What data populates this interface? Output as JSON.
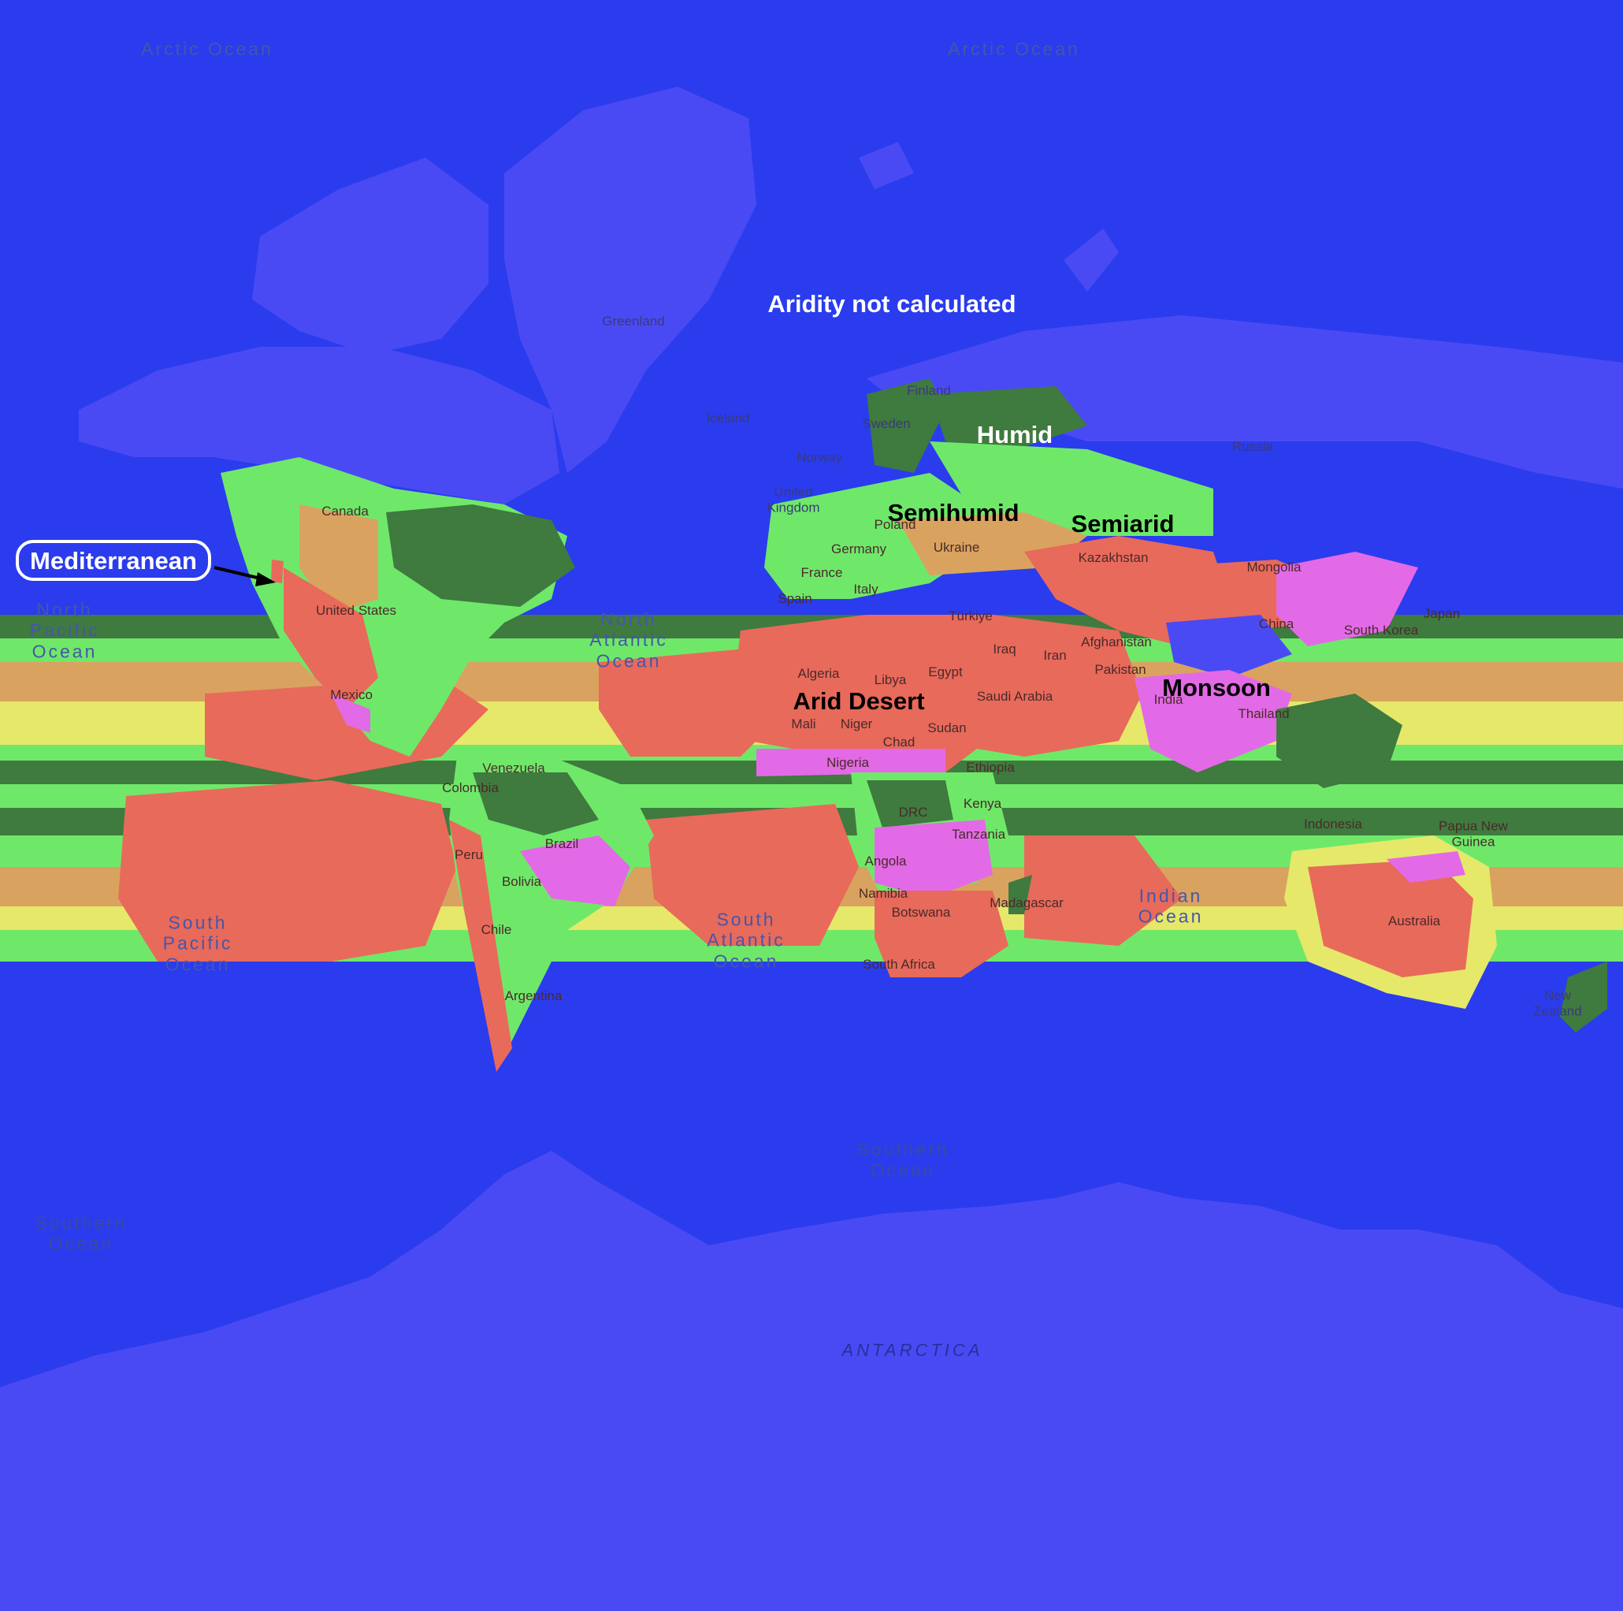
{
  "title_annotation": "Aridity not calculated",
  "zone_labels": {
    "humid": "Humid",
    "semihumid": "Semihumid",
    "semiarid": "Semiarid",
    "arid_desert": "Arid Desert",
    "monsoon": "Monsoon",
    "mediterranean": "Mediterranean"
  },
  "oceans": {
    "arctic_left": "Arctic Ocean",
    "arctic_right": "Arctic Ocean",
    "north_pacific": "North\nPacific\nOcean",
    "north_atlantic": "North\nAtlantic\nOcean",
    "south_pacific": "South\nPacific\nOcean",
    "south_atlantic": "South\nAtlantic\nOcean",
    "indian": "Indian\nOcean",
    "southern_center": "Southern\nOcean",
    "southern_left": "Southern\nOcean"
  },
  "continents": {
    "antarctica": "ANTARCTICA"
  },
  "countries": {
    "greenland": "Greenland",
    "iceland": "Iceland",
    "finland": "Finland",
    "sweden": "Sweden",
    "norway": "Norway",
    "united_kingdom": "United\nKingdom",
    "poland": "Poland",
    "germany": "Germany",
    "france": "France",
    "spain": "Spain",
    "italy": "Italy",
    "ukraine": "Ukraine",
    "turkiye": "Türkiye",
    "russia": "Russia",
    "kazakhstan": "Kazakhstan",
    "mongolia": "Mongolia",
    "china": "China",
    "south_korea": "South Korea",
    "japan": "Japan",
    "iraq": "Iraq",
    "iran": "Iran",
    "afghanistan": "Afghanistan",
    "pakistan": "Pakistan",
    "india": "India",
    "thailand": "Thailand",
    "saudi_arabia": "Saudi Arabia",
    "algeria": "Algeria",
    "libya": "Libya",
    "egypt": "Egypt",
    "mali": "Mali",
    "niger": "Niger",
    "chad": "Chad",
    "sudan": "Sudan",
    "nigeria": "Nigeria",
    "ethiopia": "Ethiopia",
    "kenya": "Kenya",
    "drc": "DRC",
    "tanzania": "Tanzania",
    "angola": "Angola",
    "namibia": "Namibia",
    "botswana": "Botswana",
    "madagascar": "Madagascar",
    "south_africa": "South Africa",
    "canada": "Canada",
    "united_states": "United States",
    "mexico": "Mexico",
    "venezuela": "Venezuela",
    "colombia": "Colombia",
    "peru": "Peru",
    "brazil": "Brazil",
    "bolivia": "Bolivia",
    "chile": "Chile",
    "argentina": "Argentina",
    "indonesia": "Indonesia",
    "papua_new_guinea": "Papua New\nGuinea",
    "australia": "Australia",
    "new_zealand": "New\nZealand"
  },
  "colors": {
    "ocean": "#2a3cee",
    "not_calculated_land": "#4a4af4",
    "humid": "#3f7a3f",
    "semihumid": "#6fe86a",
    "semiarid_yellow": "#e6e86a",
    "semiarid_tan": "#d9a35f",
    "arid_desert": "#e86a5a",
    "monsoon": "#e36ae6"
  }
}
